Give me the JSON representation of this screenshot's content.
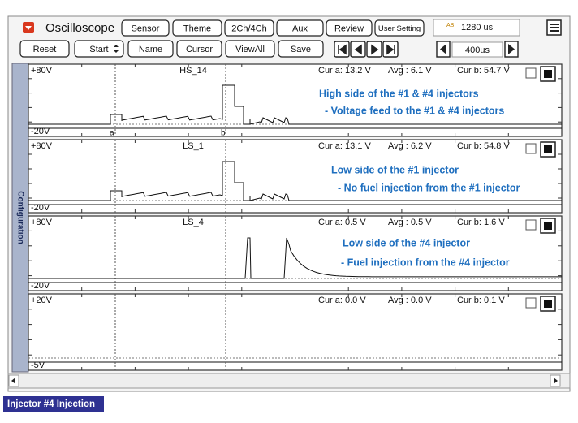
{
  "toolbar": {
    "title": "Oscilloscope",
    "buttons": [
      "Sensor",
      "Theme",
      "2Ch/4Ch",
      "Aux",
      "Review",
      "User Setting"
    ],
    "time_icon": "AB",
    "time": "1280 us"
  },
  "controls": {
    "buttons": [
      "Reset",
      "Start",
      "Name",
      "Cursor",
      "ViewAll",
      "Save"
    ],
    "timebase": "400us"
  },
  "sidebar": {
    "label": "Configuration"
  },
  "channels": [
    {
      "name": "HS_14",
      "top": "+80V",
      "bottom": "-20V",
      "cur_a": "Cur a: 13.2 V",
      "avg": "Avg : 6.1 V",
      "cur_b": "Cur b: 54.7 V",
      "notes": [
        "High side of the #1 & #4 injectors",
        "- Voltage feed to the #1 & #4 injectors"
      ],
      "cursors": [
        "a",
        "b"
      ]
    },
    {
      "name": "LS_1",
      "top": "+80V",
      "bottom": "-20V",
      "cur_a": "Cur a: 13.1 V",
      "avg": "Avg : 6.2 V",
      "cur_b": "Cur b: 54.8 V",
      "notes": [
        "Low side of the #1 injector",
        "- No fuel injection from the #1 injector"
      ]
    },
    {
      "name": "LS_4",
      "top": "+80V",
      "bottom": "-20V",
      "cur_a": "Cur a: 0.5 V",
      "avg": "Avg : 0.5 V",
      "cur_b": "Cur b: 1.6 V",
      "notes": [
        "Low side of the #4 injector",
        "- Fuel injection from the #4 injector"
      ]
    },
    {
      "top": "+20V",
      "bottom": "-5V",
      "cur_a": "Cur a: 0.0 V",
      "avg": "Avg : 0.0 V",
      "cur_b": "Cur b: 0.1 V"
    }
  ],
  "caption": "Injector #4 Injection"
}
